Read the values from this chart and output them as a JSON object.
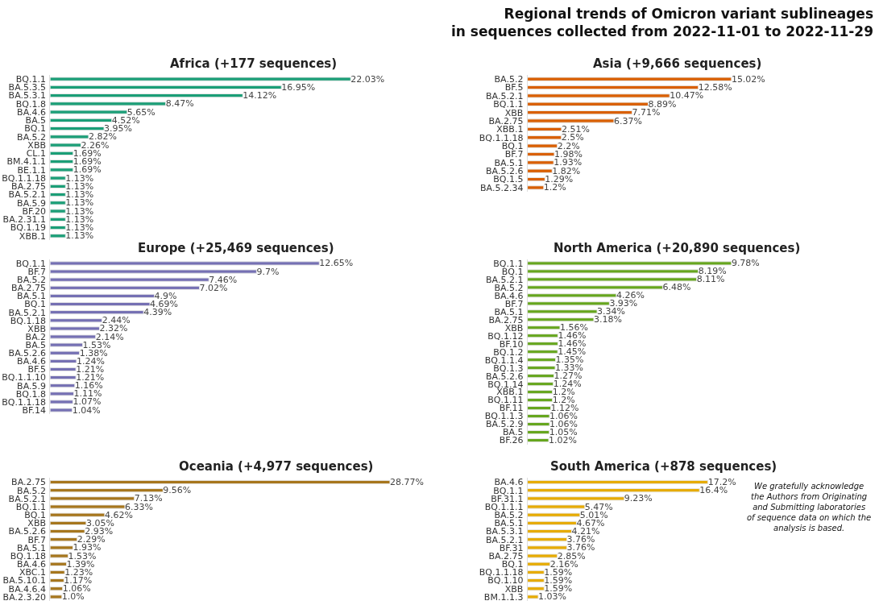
{
  "chart_data": [
    {
      "type": "other",
      "title": "Regional trends of Omicron variant sublineages\nin sequences collected from 2022-11-01 to 2022-11-29"
    },
    {
      "type": "bar",
      "orientation": "horizontal",
      "title": "Africa (+177 sequences)",
      "color": "#1b9e77",
      "categories": [
        "BQ.1.1",
        "BA.5.3.5",
        "BA.5.3.1",
        "BQ.1.8",
        "BA.4.6",
        "BA.5",
        "BQ.1",
        "BA.5.2",
        "XBB",
        "CL.1",
        "BM.4.1.1",
        "BE.1.1",
        "BQ.1.1.18",
        "BA.2.75",
        "BA.5.2.1",
        "BA.5.9",
        "BF.20",
        "BA.2.31.1",
        "BQ.1.19",
        "XBB.1"
      ],
      "values": [
        22.03,
        16.95,
        14.12,
        8.47,
        5.65,
        4.52,
        3.95,
        2.82,
        2.26,
        1.69,
        1.69,
        1.69,
        1.13,
        1.13,
        1.13,
        1.13,
        1.13,
        1.13,
        1.13,
        1.13
      ],
      "value_labels": [
        "22.03%",
        "16.95%",
        "14.12%",
        "8.47%",
        "5.65%",
        "4.52%",
        "3.95%",
        "2.82%",
        "2.26%",
        "1.69%",
        "1.69%",
        "1.69%",
        "1.13%",
        "1.13%",
        "1.13%",
        "1.13%",
        "1.13%",
        "1.13%",
        "1.13%",
        "1.13%"
      ]
    },
    {
      "type": "bar",
      "orientation": "horizontal",
      "title": "Asia (+9,666 sequences)",
      "color": "#d95f02",
      "categories": [
        "BA.5.2",
        "BF.5",
        "BA.5.2.1",
        "BQ.1.1",
        "XBB",
        "BA.2.75",
        "XBB.1",
        "BQ.1.1.18",
        "BQ.1",
        "BF.7",
        "BA.5.1",
        "BA.5.2.6",
        "BQ.1.5",
        "BA.5.2.34"
      ],
      "values": [
        15.02,
        12.58,
        10.47,
        8.89,
        7.71,
        6.37,
        2.51,
        2.5,
        2.2,
        1.98,
        1.93,
        1.82,
        1.29,
        1.2
      ],
      "value_labels": [
        "15.02%",
        "12.58%",
        "10.47%",
        "8.89%",
        "7.71%",
        "6.37%",
        "2.51%",
        "2.5%",
        "2.2%",
        "1.98%",
        "1.93%",
        "1.82%",
        "1.29%",
        "1.2%"
      ]
    },
    {
      "type": "bar",
      "orientation": "horizontal",
      "title": "Europe (+25,469 sequences)",
      "color": "#7570b3",
      "categories": [
        "BQ.1.1",
        "BF.7",
        "BA.5.2",
        "BA.2.75",
        "BA.5.1",
        "BQ.1",
        "BA.5.2.1",
        "BQ.1.18",
        "XBB",
        "BA.2",
        "BA.5",
        "BA.5.2.6",
        "BA.4.6",
        "BF.5",
        "BQ.1.1.10",
        "BA.5.9",
        "BQ.1.8",
        "BQ.1.1.18",
        "BF.14"
      ],
      "values": [
        12.65,
        9.7,
        7.46,
        7.02,
        4.9,
        4.69,
        4.39,
        2.44,
        2.32,
        2.14,
        1.53,
        1.38,
        1.24,
        1.21,
        1.21,
        1.16,
        1.11,
        1.07,
        1.04
      ],
      "value_labels": [
        "12.65%",
        "9.7%",
        "7.46%",
        "7.02%",
        "4.9%",
        "4.69%",
        "4.39%",
        "2.44%",
        "2.32%",
        "2.14%",
        "1.53%",
        "1.38%",
        "1.24%",
        "1.21%",
        "1.21%",
        "1.16%",
        "1.11%",
        "1.07%",
        "1.04%"
      ]
    },
    {
      "type": "bar",
      "orientation": "horizontal",
      "title": "North America (+20,890 sequences)",
      "color": "#66a61e",
      "categories": [
        "BQ.1.1",
        "BQ.1",
        "BA.5.2.1",
        "BA.5.2",
        "BA.4.6",
        "BF.7",
        "BA.5.1",
        "BA.2.75",
        "XBB",
        "BQ.1.12",
        "BF.10",
        "BQ.1.2",
        "BQ.1.1.4",
        "BQ.1.3",
        "BA.5.2.6",
        "BQ.1.14",
        "XBB.1",
        "BQ.1.11",
        "BF.11",
        "BQ.1.1.3",
        "BA.5.2.9",
        "BA.5",
        "BF.26"
      ],
      "values": [
        9.78,
        8.19,
        8.11,
        6.48,
        4.26,
        3.93,
        3.34,
        3.18,
        1.56,
        1.46,
        1.46,
        1.45,
        1.35,
        1.33,
        1.27,
        1.24,
        1.2,
        1.2,
        1.12,
        1.06,
        1.06,
        1.05,
        1.02
      ],
      "value_labels": [
        "9.78%",
        "8.19%",
        "8.11%",
        "6.48%",
        "4.26%",
        "3.93%",
        "3.34%",
        "3.18%",
        "1.56%",
        "1.46%",
        "1.46%",
        "1.45%",
        "1.35%",
        "1.33%",
        "1.27%",
        "1.24%",
        "1.2%",
        "1.2%",
        "1.12%",
        "1.06%",
        "1.06%",
        "1.05%",
        "1.02%"
      ]
    },
    {
      "type": "bar",
      "orientation": "horizontal",
      "title": "Oceania (+4,977 sequences)",
      "color": "#a6761d",
      "categories": [
        "BA.2.75",
        "BA.5.2",
        "BA.5.2.1",
        "BQ.1.1",
        "BQ.1",
        "XBB",
        "BA.5.2.6",
        "BF.7",
        "BA.5.1",
        "BQ.1.18",
        "BA.4.6",
        "XBC.1",
        "BA.5.10.1",
        "BA.4.6.4",
        "BA.2.3.20"
      ],
      "values": [
        28.77,
        9.56,
        7.13,
        6.33,
        4.62,
        3.05,
        2.93,
        2.29,
        1.93,
        1.53,
        1.39,
        1.23,
        1.17,
        1.06,
        1.0
      ],
      "value_labels": [
        "28.77%",
        "9.56%",
        "7.13%",
        "6.33%",
        "4.62%",
        "3.05%",
        "2.93%",
        "2.29%",
        "1.93%",
        "1.53%",
        "1.39%",
        "1.23%",
        "1.17%",
        "1.06%",
        "1.0%"
      ]
    },
    {
      "type": "bar",
      "orientation": "horizontal",
      "title": "South America (+878 sequences)",
      "color": "#e6ab02",
      "categories": [
        "BA.4.6",
        "BQ.1.1",
        "BF.31.1",
        "BQ.1.1.1",
        "BA.5.2",
        "BA.5.1",
        "BA.5.3.1",
        "BA.5.2.1",
        "BF.31",
        "BA.2.75",
        "BQ.1",
        "BQ.1.1.18",
        "BQ.1.10",
        "XBB",
        "BM.1.1.3"
      ],
      "values": [
        17.2,
        16.4,
        9.23,
        5.47,
        5.01,
        4.67,
        4.21,
        3.76,
        3.76,
        2.85,
        2.16,
        1.59,
        1.59,
        1.59,
        1.03
      ],
      "value_labels": [
        "17.2%",
        "16.4%",
        "9.23%",
        "5.47%",
        "5.01%",
        "4.67%",
        "4.21%",
        "3.76%",
        "3.76%",
        "2.85%",
        "2.16%",
        "1.59%",
        "1.59%",
        "1.59%",
        "1.03%"
      ]
    },
    {
      "type": "other",
      "annotations": [
        "We gratefully acknowledge\nthe Authors from Originating\nand Submitting laboratories\nof sequence data on which the\nanalysis is based."
      ]
    }
  ]
}
